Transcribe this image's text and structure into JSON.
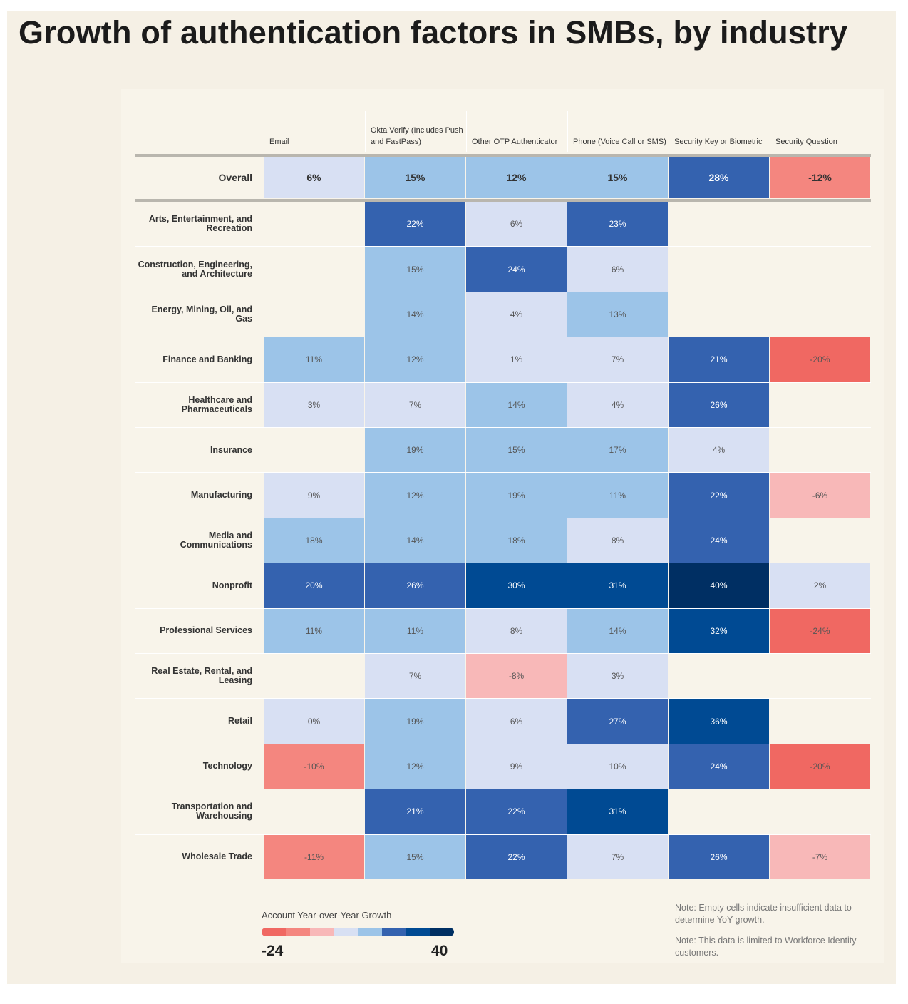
{
  "chart_data": {
    "type": "heatmap",
    "title": "Growth of authentication factors in SMBs, by industry",
    "columns": [
      "Email",
      "Okta Verify (Includes Push and FastPass)",
      "Other OTP Authenticator",
      "Phone (Voice Call or SMS)",
      "Security Key or Biometric",
      "Security Question"
    ],
    "overall": {
      "label": "Overall",
      "values": [
        6,
        15,
        12,
        15,
        28,
        -12
      ]
    },
    "rows": [
      {
        "label": "Arts, Entertainment, and Recreation",
        "values": [
          null,
          22,
          6,
          23,
          null,
          null
        ]
      },
      {
        "label": "Construction, Engineering, and Architecture",
        "values": [
          null,
          15,
          24,
          6,
          null,
          null
        ]
      },
      {
        "label": "Energy, Mining, Oil, and Gas",
        "values": [
          null,
          14,
          4,
          13,
          null,
          null
        ]
      },
      {
        "label": "Finance and Banking",
        "values": [
          11,
          12,
          1,
          7,
          21,
          -20
        ]
      },
      {
        "label": "Healthcare and Pharmaceuticals",
        "values": [
          3,
          7,
          14,
          4,
          26,
          null
        ]
      },
      {
        "label": "Insurance",
        "values": [
          null,
          19,
          15,
          17,
          4,
          null
        ]
      },
      {
        "label": "Manufacturing",
        "values": [
          9,
          12,
          19,
          11,
          22,
          -6
        ]
      },
      {
        "label": "Media and Communications",
        "values": [
          18,
          14,
          18,
          8,
          24,
          null
        ]
      },
      {
        "label": "Nonprofit",
        "values": [
          20,
          26,
          30,
          31,
          40,
          2
        ]
      },
      {
        "label": "Professional Services",
        "values": [
          11,
          11,
          8,
          14,
          32,
          -24
        ]
      },
      {
        "label": "Real Estate, Rental, and Leasing",
        "values": [
          null,
          7,
          -8,
          3,
          null,
          null
        ]
      },
      {
        "label": "Retail",
        "values": [
          0,
          19,
          6,
          27,
          36,
          null
        ]
      },
      {
        "label": "Technology",
        "values": [
          -10,
          12,
          9,
          10,
          24,
          -20
        ]
      },
      {
        "label": "Transportation and Warehousing",
        "values": [
          null,
          21,
          22,
          31,
          null,
          null
        ]
      },
      {
        "label": "Wholesale Trade",
        "values": [
          -11,
          15,
          22,
          7,
          26,
          -7
        ]
      }
    ],
    "value_suffix": "%",
    "legend": {
      "title": "Account Year-over-Year Growth",
      "min": -24,
      "max": 40,
      "min_label": "-24",
      "max_label": "40"
    },
    "color_scale": [
      "#f06862",
      "#f4867f",
      "#f8b8b8",
      "#d8e0f3",
      "#9cc4e8",
      "#3462af",
      "#004a93",
      "#002f63"
    ],
    "notes": [
      "Note: Empty cells indicate insufficient data to determine YoY growth.",
      "Note: This data is limited to Workforce Identity customers."
    ]
  }
}
